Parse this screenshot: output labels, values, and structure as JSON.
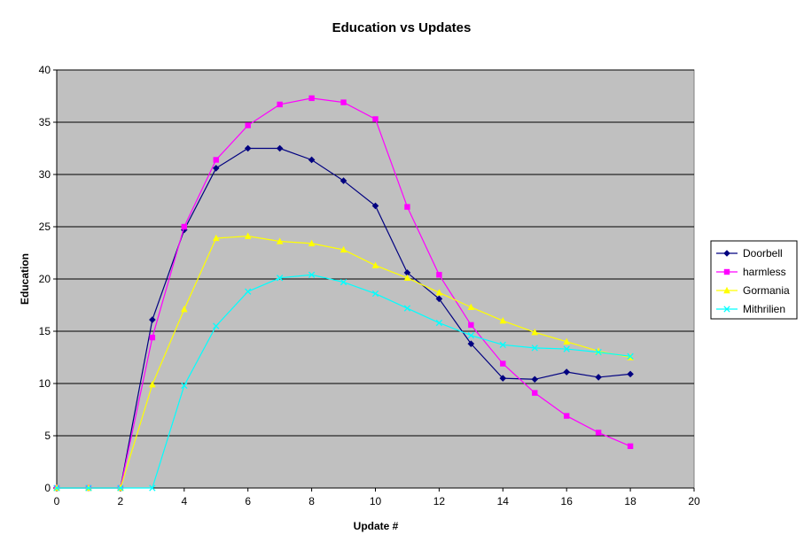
{
  "chart_data": {
    "type": "line",
    "title": "Education vs Updates",
    "xlabel": "Update #",
    "ylabel": "Education",
    "xlim": [
      0,
      20
    ],
    "ylim": [
      0,
      40
    ],
    "xticks": [
      0,
      2,
      4,
      6,
      8,
      10,
      12,
      14,
      16,
      18,
      20
    ],
    "yticks": [
      0,
      5,
      10,
      15,
      20,
      25,
      30,
      35,
      40
    ],
    "grid": "horizontal",
    "legend_position": "right",
    "plot_background": "#C0C0C0",
    "x": [
      0,
      1,
      2,
      3,
      4,
      5,
      6,
      7,
      8,
      9,
      10,
      11,
      12,
      13,
      14,
      15,
      16,
      17,
      18
    ],
    "series": [
      {
        "name": "Doorbell",
        "color": "#000080",
        "marker": "diamond",
        "values": [
          0,
          0,
          0,
          16.1,
          24.7,
          30.6,
          32.5,
          32.5,
          31.4,
          29.4,
          27.0,
          20.6,
          18.1,
          13.8,
          10.5,
          10.4,
          11.1,
          10.6,
          10.9
        ]
      },
      {
        "name": "harmless",
        "color": "#FF00FF",
        "marker": "square",
        "values": [
          0,
          0,
          0,
          14.4,
          25.0,
          31.4,
          34.7,
          36.7,
          37.3,
          36.9,
          35.3,
          26.9,
          20.4,
          15.6,
          11.9,
          9.1,
          6.9,
          5.3,
          4.0
        ]
      },
      {
        "name": "Gormania",
        "color": "#FFFF00",
        "marker": "triangle",
        "values": [
          0,
          0,
          0,
          9.9,
          17.1,
          23.9,
          24.1,
          23.6,
          23.4,
          22.8,
          21.3,
          20.1,
          18.7,
          17.3,
          16.0,
          14.9,
          14.0,
          13.1,
          12.5
        ]
      },
      {
        "name": "Mithrilien",
        "color": "#00FFFF",
        "marker": "x",
        "values": [
          0,
          0,
          0,
          0,
          9.8,
          15.5,
          18.8,
          20.1,
          20.4,
          19.7,
          18.6,
          17.2,
          15.8,
          14.6,
          13.7,
          13.4,
          13.3,
          13.0,
          12.6
        ]
      }
    ]
  }
}
